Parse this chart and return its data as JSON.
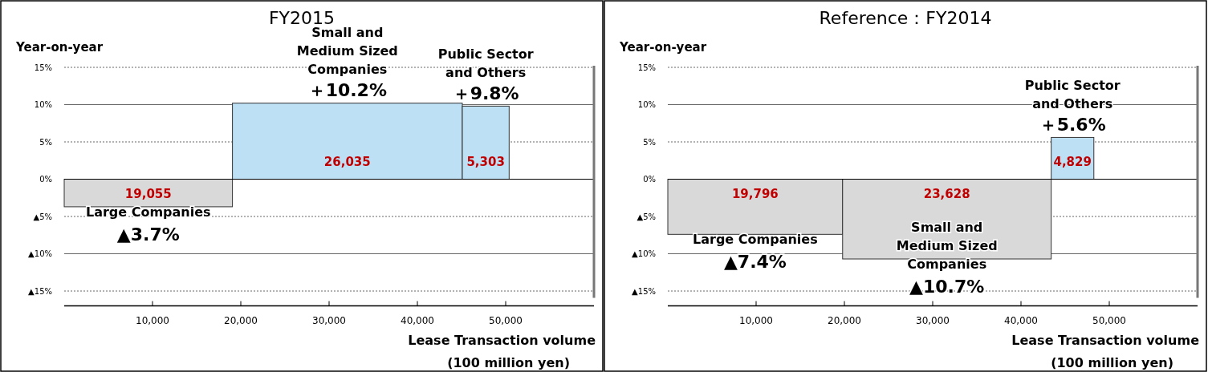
{
  "chart_data": [
    {
      "type": "histogram",
      "title": "FY2015",
      "ylabel": "Year-on-year",
      "xlabel": "Lease Transaction volume\n(100 million yen)",
      "bins": [
        0,
        19055,
        45090,
        50393
      ],
      "values": [
        -3.7,
        10.2,
        9.8
      ],
      "colors": [
        "#d9d9d9",
        "#bde0f5",
        "#bde0f5"
      ],
      "xlim": [
        0,
        60000
      ],
      "xticks": [
        {
          "value": 10000,
          "label": "10,000"
        },
        {
          "value": 20000,
          "label": "20,000"
        },
        {
          "value": 30000,
          "label": "30,000"
        },
        {
          "value": 40000,
          "label": "40,000"
        },
        {
          "value": 50000,
          "label": "50,000"
        }
      ],
      "ylim": [
        -17,
        15
      ],
      "yticks": [
        {
          "value": -15,
          "label": "▲15%"
        },
        {
          "value": -10,
          "label": "▲10%"
        },
        {
          "value": -5,
          "label": "▲5%"
        },
        {
          "value": 0,
          "label": "0%"
        },
        {
          "value": 5,
          "label": "5%"
        },
        {
          "value": 10,
          "label": "10%"
        },
        {
          "value": 15,
          "label": "15%"
        }
      ],
      "grid": "y",
      "annotations": [
        "19,055",
        "Large Companies",
        "▲3.7%",
        "26,035",
        "Small and\nMedium Sized\nCompanies",
        "＋10.2%",
        "5,303",
        "Public Sector\nand Others",
        "＋9.8%"
      ]
    },
    {
      "type": "histogram",
      "title": "Reference：FY2014",
      "ylabel": "Year-on-year",
      "xlabel": "Lease Transaction volume\n(100 million yen)",
      "bins": [
        0,
        19796,
        43424,
        48253
      ],
      "values": [
        -7.4,
        -10.7,
        5.6
      ],
      "colors": [
        "#d9d9d9",
        "#d9d9d9",
        "#bde0f5"
      ],
      "xlim": [
        0,
        60000
      ],
      "xticks": [
        {
          "value": 10000,
          "label": "10,000"
        },
        {
          "value": 20000,
          "label": "20,000"
        },
        {
          "value": 30000,
          "label": "30,000"
        },
        {
          "value": 40000,
          "label": "40,000"
        },
        {
          "value": 50000,
          "label": "50,000"
        }
      ],
      "ylim": [
        -17,
        15
      ],
      "yticks": [
        {
          "value": -15,
          "label": "▲15%"
        },
        {
          "value": -10,
          "label": "▲10%"
        },
        {
          "value": -5,
          "label": "▲5%"
        },
        {
          "value": 0,
          "label": "0%"
        },
        {
          "value": 5,
          "label": "5%"
        },
        {
          "value": 10,
          "label": "10%"
        },
        {
          "value": 15,
          "label": "15%"
        }
      ],
      "grid": "y",
      "annotations": [
        "19,796",
        "Large Companies",
        "▲7.4%",
        "23,628",
        "Small and\nMedium Sized\nCompanies",
        "▲10.7%",
        "4,829",
        "Public Sector\nand Others",
        "＋5.6%"
      ]
    }
  ]
}
